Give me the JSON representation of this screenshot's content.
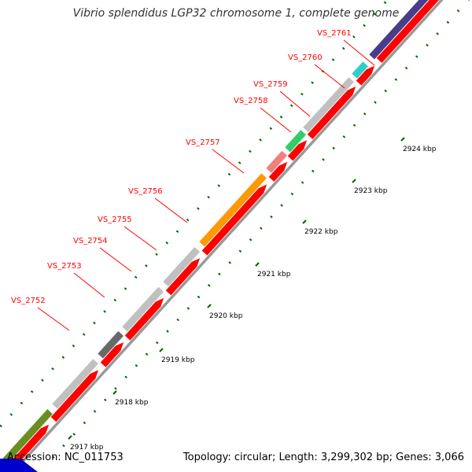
{
  "title": "Vibrio splendidus LGP32 chromosome 1, complete genome",
  "footer": {
    "accession": "Accession: NC_011753",
    "topology": "Topology: circular; Length: 3,299,302 bp; Genes: 3,066"
  },
  "colors": {
    "cds": "#ff0000",
    "backbone": "#999999",
    "ticks": "#006400",
    "label": "#ff0000"
  },
  "kbp_labels": [
    "2917 kbp",
    "2918 kbp",
    "2919 kbp",
    "2920 kbp",
    "2921 kbp",
    "2922 kbp",
    "2923 kbp",
    "2924 kbp"
  ],
  "genes": [
    {
      "id": "VS_2752",
      "label": "VS_2752",
      "color": "#6b8e23"
    },
    {
      "id": "VS_2753",
      "label": "VS_2753",
      "color": "#c0c0c0"
    },
    {
      "id": "VS_2754",
      "label": "VS_2754",
      "color": "#696969"
    },
    {
      "id": "VS_2755",
      "label": "VS_2755",
      "color": "#c0c0c0"
    },
    {
      "id": "VS_2756",
      "label": "VS_2756",
      "color": "#c0c0c0"
    },
    {
      "id": "VS_2757",
      "label": "VS_2757",
      "color": "#ff9900"
    },
    {
      "id": "VS_2758",
      "label": "VS_2758",
      "color": "#f08080"
    },
    {
      "id": "VS_2759",
      "label": "VS_2759",
      "color": "#33cc66"
    },
    {
      "id": "VS_2760",
      "label": "VS_2760",
      "color": "#c0c0c0"
    },
    {
      "id": "VS_2761",
      "label": "VS_2761",
      "color": "#33cccc"
    }
  ],
  "flank_color": "#483d8b"
}
